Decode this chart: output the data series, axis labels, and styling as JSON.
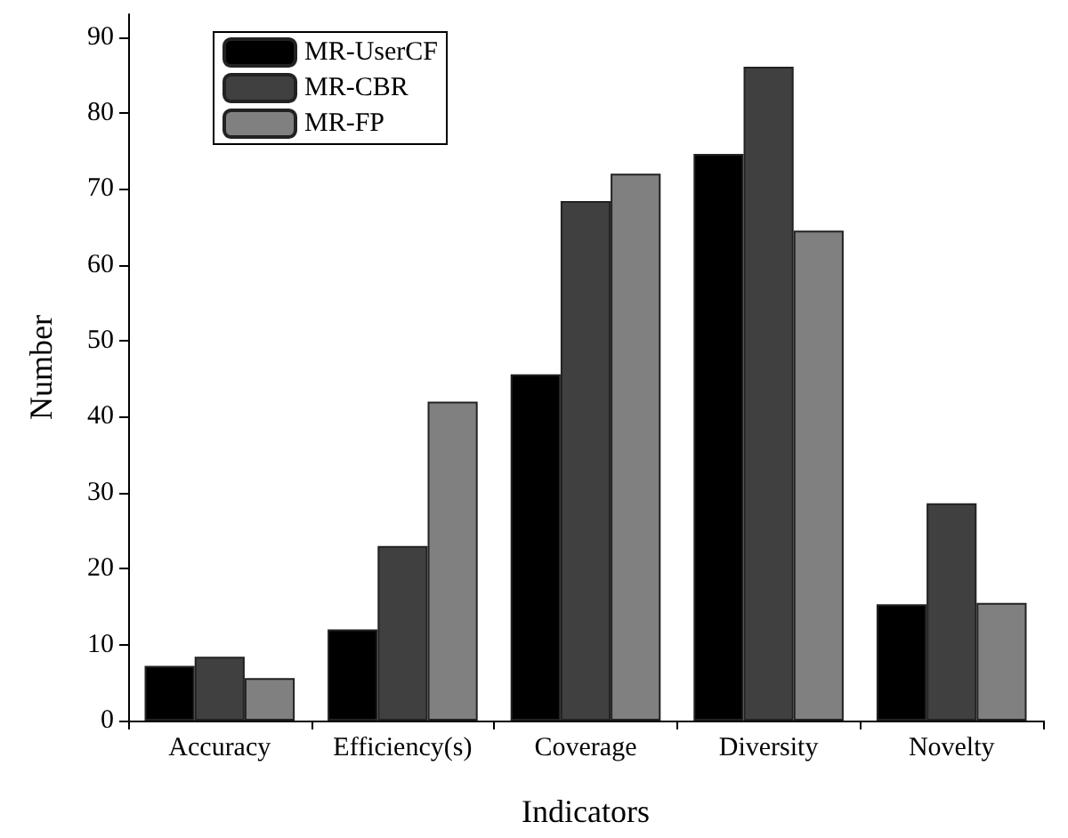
{
  "chart_data": {
    "type": "bar",
    "xlabel": "Indicators",
    "ylabel": "Number",
    "categories": [
      "Accuracy",
      "Efficiency(s)",
      "Coverage",
      "Diversity",
      "Novelty"
    ],
    "series": [
      {
        "name": "MR-UserCF",
        "color": "#000000",
        "values": [
          7.2,
          12,
          45.6,
          74.6,
          15.3
        ]
      },
      {
        "name": "MR-CBR",
        "color": "#404040",
        "values": [
          8.4,
          23,
          68.4,
          86.1,
          28.6
        ]
      },
      {
        "name": "MR-FP",
        "color": "#808080",
        "values": [
          5.6,
          42,
          72,
          64.5,
          15.5
        ]
      }
    ],
    "ylim": [
      0,
      93
    ],
    "yticks": [
      0,
      10,
      20,
      30,
      40,
      50,
      60,
      70,
      80,
      90
    ],
    "grid": false,
    "legend": "top left"
  }
}
